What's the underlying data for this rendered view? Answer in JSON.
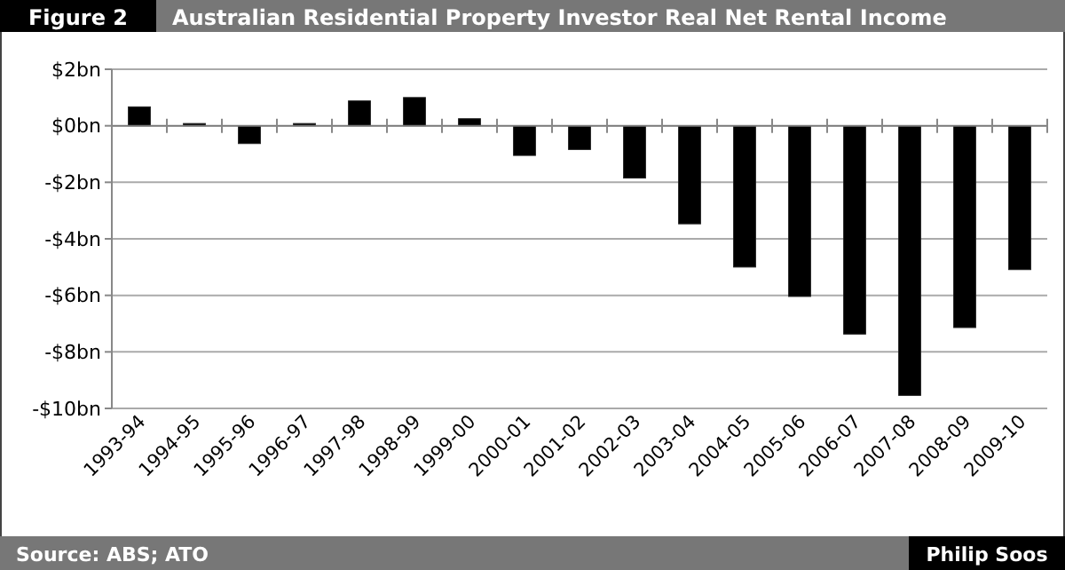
{
  "chart_data": {
    "type": "bar",
    "title": "Australian Residential Property Investor Real Net Rental Income",
    "annotations": [
      "Figure 2",
      "Source: ABS; ATO",
      "Philip Soos"
    ],
    "categories": [
      "1993-94",
      "1994-95",
      "1995-96",
      "1996-97",
      "1997-98",
      "1998-99",
      "1999-00",
      "2000-01",
      "2001-02",
      "2002-03",
      "2003-04",
      "2004-05",
      "2005-06",
      "2006-07",
      "2007-08",
      "2008-09",
      "2009-10"
    ],
    "values": [
      0.67,
      0.08,
      -0.63,
      0.08,
      0.88,
      1.0,
      0.25,
      -1.05,
      -0.84,
      -1.85,
      -3.47,
      -5.0,
      -6.04,
      -7.37,
      -9.54,
      -7.14,
      -5.09
    ],
    "color": "#000000",
    "ylim": [
      -10,
      2
    ],
    "yticks": [
      {
        "value": 2,
        "label": "$2bn"
      },
      {
        "value": 0,
        "label": "$0bn"
      },
      {
        "value": -2,
        "label": "-$2bn"
      },
      {
        "value": -4,
        "label": "-$4bn"
      },
      {
        "value": -6,
        "label": "-$6bn"
      },
      {
        "value": -8,
        "label": "-$8bn"
      },
      {
        "value": -10,
        "label": "-$10bn"
      }
    ],
    "grid": "y"
  }
}
